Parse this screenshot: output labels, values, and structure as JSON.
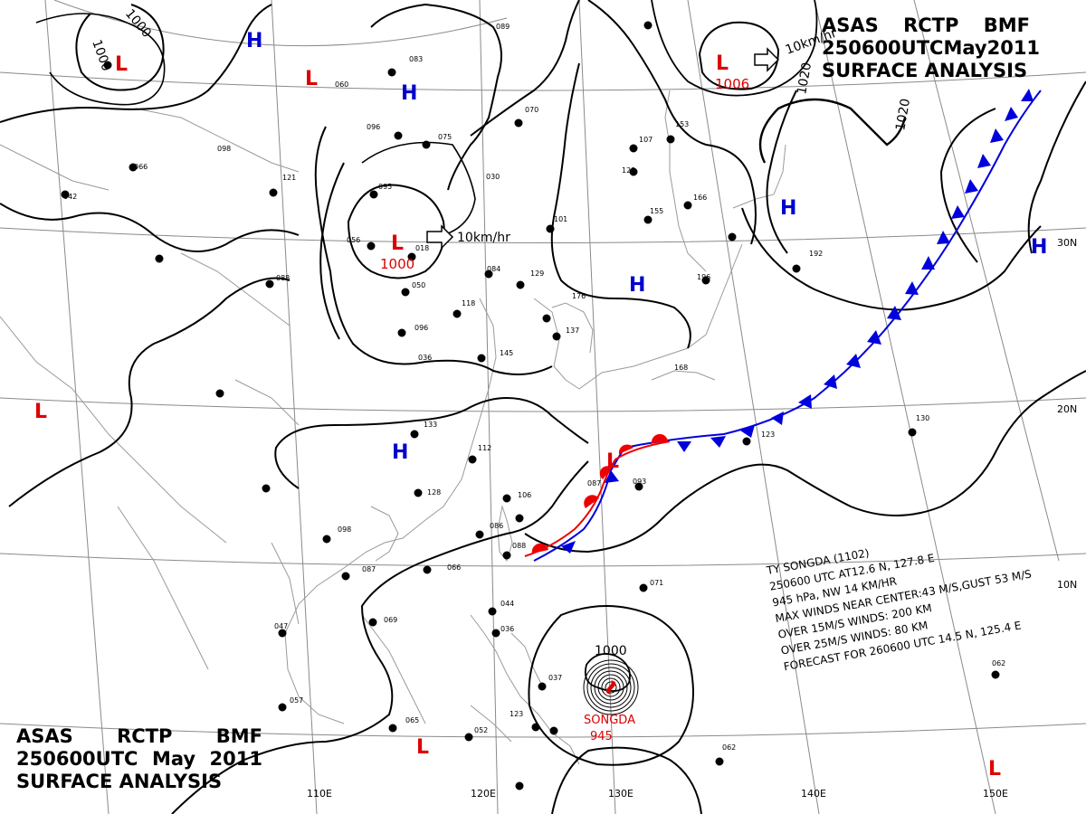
{
  "title": {
    "agency": "ASAS",
    "station": "RCTP",
    "office": "BMF",
    "datetime": "250600UTC",
    "month": "May",
    "year": "2011",
    "product": "SURFACE ANALYSIS"
  },
  "lon_labels": [
    "110E",
    "120E",
    "130E",
    "140E",
    "150E"
  ],
  "lat_labels": [
    "30N",
    "20N",
    "10N"
  ],
  "pressure_centers": [
    {
      "type": "H",
      "color": "#0000cc"
    },
    {
      "type": "H",
      "color": "#0000cc"
    },
    {
      "type": "H",
      "color": "#0000cc"
    },
    {
      "type": "H",
      "color": "#0000cc"
    },
    {
      "type": "H",
      "color": "#0000cc"
    },
    {
      "type": "H",
      "color": "#0000cc"
    },
    {
      "type": "L",
      "color": "#dd0000"
    },
    {
      "type": "L",
      "color": "#dd0000"
    },
    {
      "type": "L",
      "color": "#dd0000"
    },
    {
      "type": "L",
      "color": "#dd0000"
    },
    {
      "type": "L",
      "color": "#dd0000"
    },
    {
      "type": "L",
      "color": "#dd0000"
    },
    {
      "type": "L",
      "color": "#dd0000"
    },
    {
      "type": "L",
      "color": "#dd0000"
    }
  ],
  "center_values": {
    "low_china": "1000",
    "low_japan_sea": "1006"
  },
  "isobar_labels": {
    "a": "1000",
    "b": "1000",
    "c": "1020",
    "d": "1020",
    "e": "1000"
  },
  "motion_labels": {
    "low_china": "10km/hr",
    "low_japan_sea": "10km/hr"
  },
  "typhoon": {
    "name_label": "SONGDA",
    "pressure_label": "945",
    "info_lines": [
      "TY  SONGDA (1102)",
      "250600 UTC  AT12.6 N, 127.8 E",
      "945 hPa, NW  14 KM/HR",
      "MAX WINDS NEAR CENTER:43 M/S,GUST 53 M/S",
      "OVER 15M/S WINDS: 200 KM",
      "OVER 25M/S WINDS: 80 KM",
      "FORECAST FOR 260600 UTC 14.5 N, 125.4 E"
    ]
  },
  "station_values": [
    "089",
    "083",
    "060",
    "096",
    "075",
    "098",
    "121",
    "095",
    "056",
    "018",
    "088",
    "084",
    "129",
    "050",
    "118",
    "096",
    "145",
    "036",
    "176",
    "137",
    "133",
    "112",
    "128",
    "106",
    "086",
    "098",
    "087",
    "066",
    "069",
    "047",
    "057",
    "065",
    "052",
    "037",
    "123",
    "044",
    "036",
    "088",
    "087",
    "093",
    "071",
    "123",
    "130",
    "062",
    "062",
    "107",
    "123",
    "155",
    "166",
    "153",
    "192",
    "196",
    "168",
    "042",
    "066",
    "030",
    "101",
    "070"
  ],
  "colors": {
    "high": "#0000cc",
    "low": "#dd0000",
    "cold_front": "#0000dd",
    "warm_front": "#ee0000",
    "isobar": "#000000",
    "grid": "#888888",
    "coast": "#999999"
  }
}
